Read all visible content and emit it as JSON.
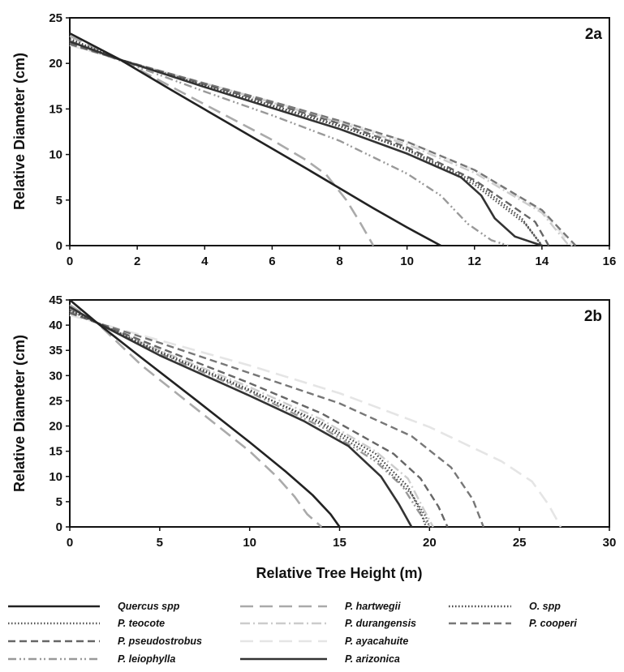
{
  "chart_data": [
    {
      "type": "line",
      "panel_label": "2a",
      "ylabel": "Relative Diameter (cm)",
      "xlabel": "",
      "xlim": [
        0,
        16
      ],
      "ylim": [
        0,
        25
      ],
      "xticks": [
        "0",
        "2",
        "4",
        "6",
        "8",
        "10",
        "12",
        "14",
        "16"
      ],
      "yticks": [
        "0",
        "5",
        "10",
        "15",
        "20",
        "25"
      ],
      "grid": false,
      "series": [
        {
          "name": "Quercus spp",
          "x": [
            0,
            1.5,
            3,
            5,
            7,
            9,
            10,
            11
          ],
          "y": [
            23.3,
            20.4,
            17.1,
            12.8,
            8.5,
            4.1,
            2.0,
            0
          ]
        },
        {
          "name": "P. teocote",
          "x": [
            0,
            1.5,
            4,
            6,
            8,
            10,
            12,
            13.5,
            14
          ],
          "y": [
            22.6,
            20.4,
            17.6,
            15.4,
            13.2,
            10.5,
            6.7,
            2.4,
            0
          ]
        },
        {
          "name": "P. pseudostrobus",
          "x": [
            0,
            1.5,
            4,
            6,
            8,
            10,
            12,
            13.8,
            14.2
          ],
          "y": [
            22.2,
            20.4,
            17.7,
            15.6,
            13.4,
            10.8,
            7.2,
            2.6,
            0
          ]
        },
        {
          "name": "P. leiophylla",
          "x": [
            0,
            1.5,
            4,
            6,
            8,
            10,
            11,
            11.8,
            12.5,
            13
          ],
          "y": [
            22.3,
            20.3,
            16.9,
            14.3,
            11.5,
            7.9,
            5.5,
            2.4,
            0.6,
            0
          ]
        },
        {
          "name": "P. hartwegii",
          "x": [
            0,
            1.5,
            4,
            6,
            7,
            7.6,
            8.2,
            8.6,
            9
          ],
          "y": [
            23.0,
            20.4,
            15.5,
            11.6,
            9.4,
            7.8,
            5.0,
            2.6,
            0
          ]
        },
        {
          "name": "P. durangensis",
          "x": [
            0,
            1.5,
            4,
            6,
            8,
            10,
            12,
            14,
            14.8
          ],
          "y": [
            22.5,
            20.4,
            17.8,
            15.7,
            13.5,
            11.1,
            8.0,
            3.6,
            0
          ]
        },
        {
          "name": "P. ayacahuite",
          "x": [
            0,
            1.5,
            4,
            6,
            8,
            10,
            12,
            14,
            14.9
          ],
          "y": [
            22.0,
            20.4,
            17.8,
            15.8,
            13.7,
            11.4,
            8.3,
            3.8,
            0
          ]
        },
        {
          "name": "P. arizonica",
          "x": [
            0,
            1.5,
            4,
            6,
            8,
            10,
            11.6,
            12.2,
            12.6,
            13.2,
            14
          ],
          "y": [
            22.4,
            20.4,
            17.4,
            15.1,
            12.8,
            10.1,
            7.5,
            5.5,
            3.0,
            1.0,
            0
          ]
        },
        {
          "name": "O. spp",
          "x": [
            0,
            1.5,
            4,
            6,
            8,
            10,
            12,
            13.4,
            14
          ],
          "y": [
            22.7,
            20.4,
            17.5,
            15.3,
            13.1,
            10.6,
            7.0,
            3.0,
            0
          ]
        },
        {
          "name": "P. cooperi",
          "x": [
            0,
            1.5,
            4,
            6,
            8,
            10,
            12,
            14,
            15
          ],
          "y": [
            22.1,
            20.4,
            17.8,
            15.8,
            13.7,
            11.4,
            8.3,
            3.9,
            0
          ]
        }
      ]
    },
    {
      "type": "line",
      "panel_label": "2b",
      "ylabel": "Relative Diameter (cm)",
      "xlabel": "Relative Tree Height (m)",
      "xlim": [
        0,
        30
      ],
      "ylim": [
        0,
        45
      ],
      "xticks": [
        "0",
        "5",
        "10",
        "15",
        "20",
        "25",
        "30"
      ],
      "yticks": [
        "0",
        "5",
        "10",
        "15",
        "20",
        "25",
        "30",
        "35",
        "40",
        "45"
      ],
      "grid": false,
      "series": [
        {
          "name": "Quercus spp",
          "x": [
            0,
            1.5,
            4,
            7,
            10,
            12,
            13.5,
            14.5,
            15
          ],
          "y": [
            45,
            40.5,
            33.5,
            25.2,
            16.8,
            11.0,
            6.3,
            2.5,
            0
          ]
        },
        {
          "name": "P. teocote",
          "x": [
            0,
            1.5,
            5,
            10,
            14,
            17,
            19,
            19.8,
            20
          ],
          "y": [
            43,
            40.5,
            34.8,
            27.2,
            20.3,
            13.6,
            6.5,
            2.0,
            0
          ]
        },
        {
          "name": "P. pseudostrobus",
          "x": [
            0,
            1.5,
            5,
            10,
            14,
            18,
            19.5,
            20.5,
            21
          ],
          "y": [
            42.5,
            40.5,
            35.5,
            28.5,
            22.5,
            14.5,
            9.6,
            4.0,
            0
          ]
        },
        {
          "name": "P. leiophylla",
          "x": [
            0,
            1.5,
            5,
            10,
            14,
            17,
            18.5,
            19.4,
            20
          ],
          "y": [
            43.2,
            40.5,
            34.4,
            26.7,
            19.8,
            13.0,
            8.0,
            3.0,
            0
          ]
        },
        {
          "name": "P. hartwegii",
          "x": [
            0,
            1.5,
            4,
            7,
            10,
            11.5,
            12.5,
            13.2,
            14
          ],
          "y": [
            44,
            40.5,
            32.0,
            23.5,
            15.0,
            10.0,
            6.0,
            2.5,
            0
          ]
        },
        {
          "name": "P. durangensis",
          "x": [
            0,
            1.5,
            5,
            10,
            14,
            17,
            18.8,
            19.6,
            20.2
          ],
          "y": [
            42.8,
            40.5,
            35.0,
            27.7,
            21.3,
            15.0,
            9.6,
            4.0,
            0
          ]
        },
        {
          "name": "P. ayacahuite",
          "x": [
            0,
            1.5,
            5,
            10,
            15,
            20,
            24,
            25.7,
            26.6,
            27.3
          ],
          "y": [
            42,
            40.5,
            37.0,
            32.0,
            26.5,
            19.8,
            13.0,
            9.0,
            4.5,
            0
          ]
        },
        {
          "name": "P. arizonica",
          "x": [
            0,
            1.5,
            5,
            10,
            13,
            15.5,
            17.3,
            18.3,
            19
          ],
          "y": [
            43.6,
            40.5,
            34.0,
            26.0,
            21.0,
            16.0,
            10.0,
            4.5,
            0
          ]
        },
        {
          "name": "O. spp",
          "x": [
            0,
            1.5,
            5,
            10,
            14,
            17,
            18.8,
            19.5,
            19.8
          ],
          "y": [
            42.9,
            40.5,
            34.6,
            27.0,
            20.7,
            14.5,
            8.0,
            3.0,
            0
          ]
        },
        {
          "name": "P. cooperi",
          "x": [
            0,
            1.5,
            5,
            10,
            15,
            19,
            21.2,
            22.4,
            23
          ],
          "y": [
            42.4,
            40.5,
            36.5,
            30.5,
            24.5,
            18.0,
            11.8,
            5.5,
            0
          ]
        }
      ]
    }
  ],
  "legend": [
    {
      "name": "Quercus spp",
      "color": "#222222",
      "style": "solid"
    },
    {
      "name": "P. teocote",
      "color": "#555555",
      "style": "dotted"
    },
    {
      "name": "P. pseudostrobus",
      "color": "#666666",
      "style": "dashed"
    },
    {
      "name": "P. leiophylla",
      "color": "#999999",
      "style": "dash-dot-dot"
    },
    {
      "name": "P. hartwegii",
      "color": "#aaaaaa",
      "style": "long-dash"
    },
    {
      "name": "P. durangensis",
      "color": "#cccccc",
      "style": "dash-dot"
    },
    {
      "name": "P. ayacahuite",
      "color": "#e5e5e5",
      "style": "long-dash"
    },
    {
      "name": "P. arizonica",
      "color": "#333333",
      "style": "solid"
    },
    {
      "name": "O. spp",
      "color": "#444444",
      "style": "dotted"
    },
    {
      "name": "P. cooperi",
      "color": "#777777",
      "style": "dashed"
    }
  ]
}
